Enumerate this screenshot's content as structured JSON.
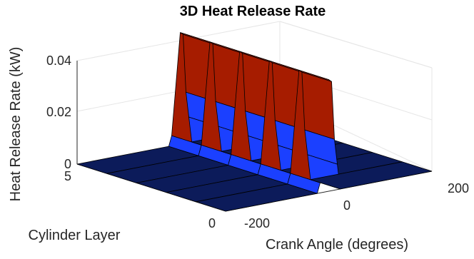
{
  "chart_data": {
    "type": "surface",
    "title": "3D Heat Release Rate",
    "xlabel": "Crank Angle (degrees)",
    "ylabel": "Cylinder Layer",
    "zlabel": "Heat Release Rate (kW)",
    "x_ticks": [
      "-200",
      "0",
      "200"
    ],
    "y_ticks": [
      "0",
      "5"
    ],
    "z_ticks": [
      "0",
      "0.02",
      "0.04"
    ],
    "xlim": [
      -360,
      360
    ],
    "ylim": [
      0,
      5
    ],
    "zlim": [
      0,
      0.045
    ],
    "grid": true,
    "colormap": "parula",
    "layers": [
      0,
      1,
      2,
      3,
      4,
      5
    ],
    "profile_angle": [
      -360,
      -40,
      -30,
      0,
      10,
      20,
      30,
      40,
      360
    ],
    "profile_value": [
      0,
      0,
      0.004,
      0.044,
      0.043,
      0.02,
      0.01,
      0,
      0
    ]
  },
  "colors": {
    "low": "#0c1b5a",
    "mid_low": "#1b40ff",
    "mid": "#13a5ee",
    "mid_high": "#66f285",
    "high_mid": "#ff9e00",
    "top": "#a61c00"
  }
}
